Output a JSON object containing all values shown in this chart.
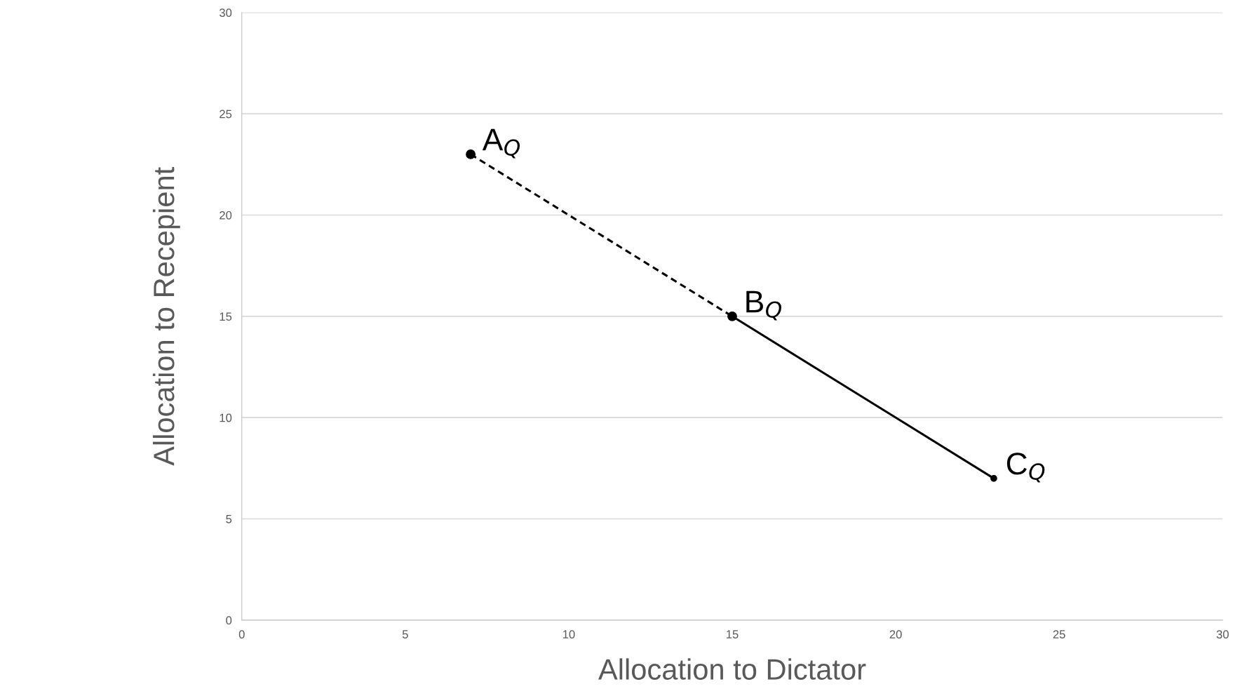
{
  "chart_data": {
    "type": "line",
    "xlabel": "Allocation to Dictator",
    "ylabel": "Allocation to Recepient",
    "xlim": [
      0,
      30
    ],
    "xticks": [
      0,
      5,
      10,
      15,
      20,
      25,
      30
    ],
    "ylim": [
      0,
      30
    ],
    "yticks": [
      0,
      5,
      10,
      15,
      20,
      25,
      30
    ],
    "grid": "y",
    "marker": "circle",
    "series": [
      {
        "color": "#000000",
        "x": [
          7,
          15
        ],
        "values": [
          23,
          15
        ],
        "line_style": "dashed"
      },
      {
        "color": "#000000",
        "x": [
          15,
          23
        ],
        "values": [
          15,
          7
        ],
        "line_style": "solid"
      }
    ],
    "annotations": [
      {
        "text": "A$_{Q}$",
        "x": 7,
        "y": 23
      },
      {
        "text": "B$_{Q}$",
        "x": 15,
        "y": 15
      },
      {
        "text": "C$_{Q}$",
        "x": 23,
        "y": 7
      }
    ]
  }
}
